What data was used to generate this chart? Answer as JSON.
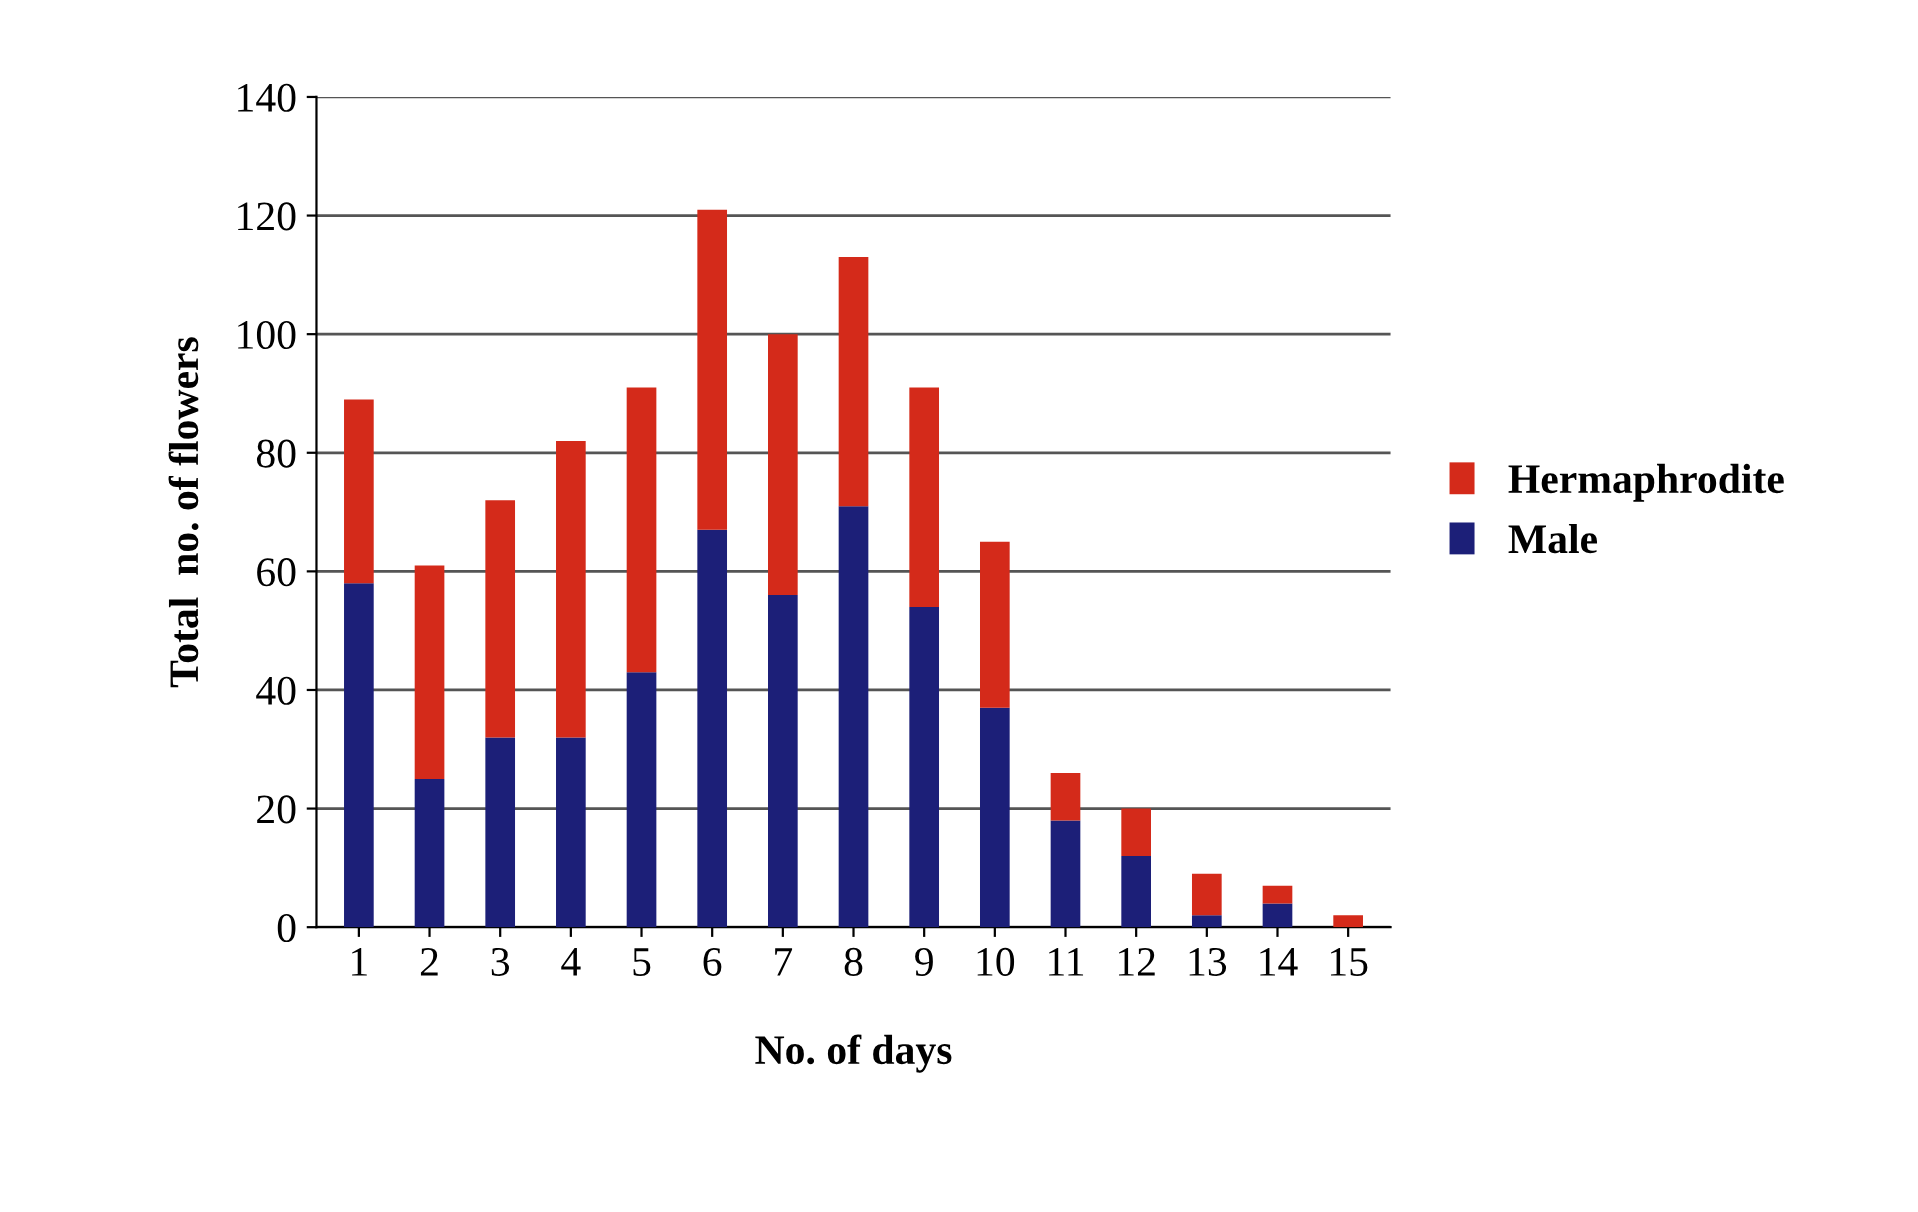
{
  "chart_data": {
    "type": "bar",
    "stacked": true,
    "xlabel": "No. of days",
    "ylabel": "Total  no. of flowers",
    "categories": [
      "1",
      "2",
      "3",
      "4",
      "5",
      "6",
      "7",
      "8",
      "9",
      "10",
      "11",
      "12",
      "13",
      "14",
      "15"
    ],
    "series": [
      {
        "name": "Male",
        "color": "#1c1f78",
        "values": [
          58,
          25,
          32,
          32,
          43,
          67,
          56,
          71,
          54,
          37,
          18,
          12,
          2,
          4,
          0
        ]
      },
      {
        "name": "Hermaphrodite",
        "color": "#d42a1a",
        "values": [
          31,
          36,
          40,
          50,
          48,
          54,
          44,
          42,
          37,
          28,
          8,
          8,
          7,
          3,
          2
        ]
      }
    ],
    "ylim": [
      0,
      140
    ],
    "yticks": [
      0,
      20,
      40,
      60,
      80,
      100,
      120,
      140
    ],
    "grid": "y",
    "legend": "right"
  }
}
